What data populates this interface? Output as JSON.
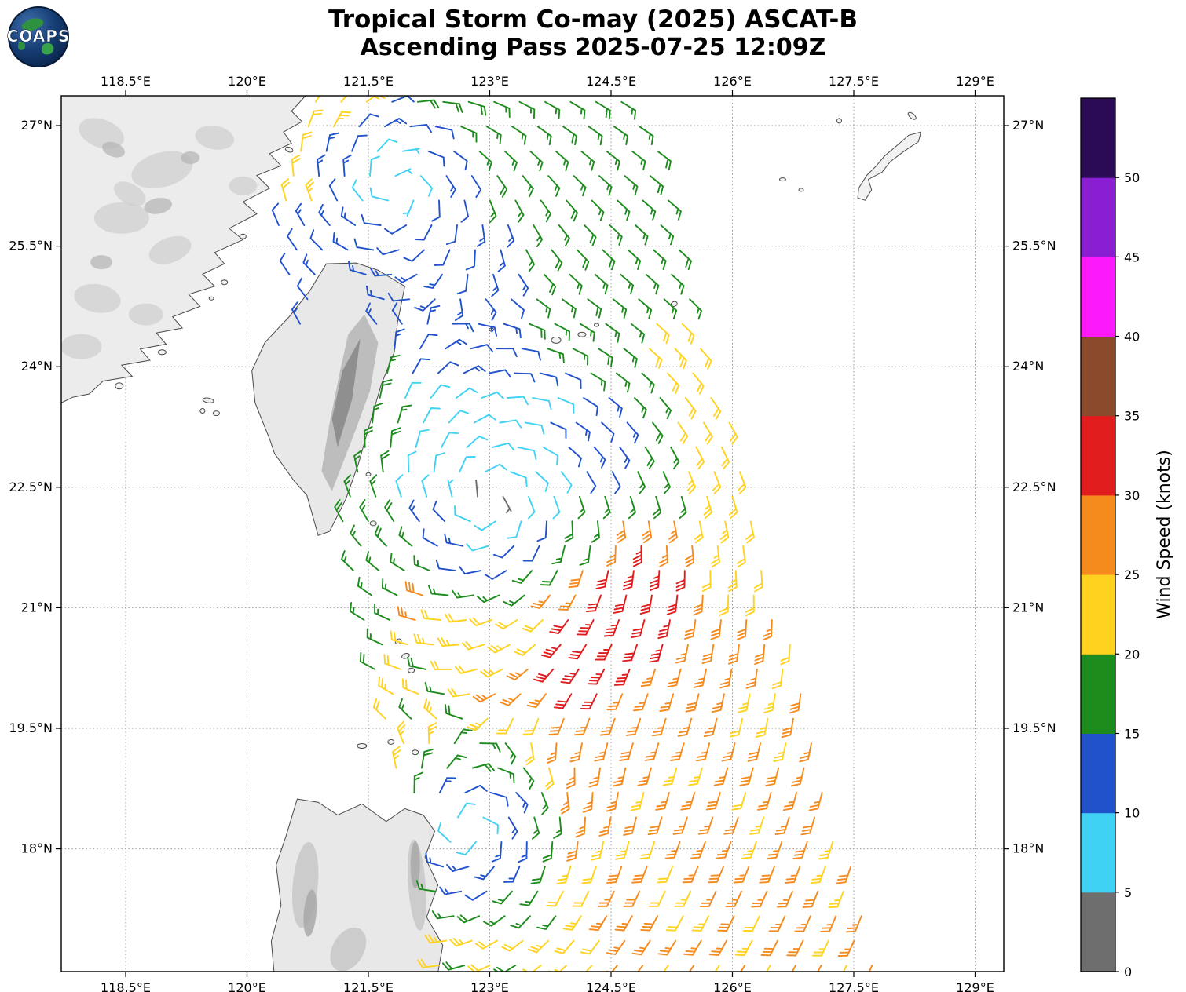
{
  "header": {
    "title_line1": "Tropical Storm Co-may (2025) ASCAT-B",
    "title_line2": "Ascending Pass 2025-07-25 12:09Z",
    "logo_text": "COAPS"
  },
  "axes": {
    "lon_ticks": [
      {
        "deg": 118.5,
        "label": "118.5°E"
      },
      {
        "deg": 120.0,
        "label": "120°E"
      },
      {
        "deg": 121.5,
        "label": "121.5°E"
      },
      {
        "deg": 123.0,
        "label": "123°E"
      },
      {
        "deg": 124.5,
        "label": "124.5°E"
      },
      {
        "deg": 126.0,
        "label": "126°E"
      },
      {
        "deg": 127.5,
        "label": "127.5°E"
      },
      {
        "deg": 129.0,
        "label": "129°E"
      }
    ],
    "lat_ticks": [
      {
        "deg": 27.0,
        "label": "27°N"
      },
      {
        "deg": 25.5,
        "label": "25.5°N"
      },
      {
        "deg": 24.0,
        "label": "24°N"
      },
      {
        "deg": 22.5,
        "label": "22.5°N"
      },
      {
        "deg": 21.0,
        "label": "21°N"
      },
      {
        "deg": 19.5,
        "label": "19.5°N"
      },
      {
        "deg": 18.0,
        "label": "18°N"
      }
    ]
  },
  "colorbar": {
    "title": "Wind Speed (knots)",
    "tick_values": [
      0,
      5,
      10,
      15,
      20,
      25,
      30,
      35,
      40,
      45,
      50
    ],
    "segment_colors": [
      "#6e6e6e",
      "#40d2f5",
      "#2152cc",
      "#1d8c1d",
      "#ffd21f",
      "#f58a1d",
      "#e11c1c",
      "#8a4a2b",
      "#fb1afb",
      "#8a1ed2",
      "#2b0a56"
    ]
  },
  "chart_data": {
    "type": "wind_barb_map",
    "title": "Tropical Storm Co-may (2025) ASCAT-B",
    "subtitle": "Ascending Pass 2025-07-25 12:09Z",
    "units": "knots",
    "lon_extent_deg_e": [
      117.7,
      129.35
    ],
    "lat_extent_deg_n": [
      16.47,
      27.37
    ],
    "lon_tick_values_deg_e": [
      118.5,
      120.0,
      121.5,
      123.0,
      124.5,
      126.0,
      127.5,
      129.0
    ],
    "lat_tick_values_deg_n": [
      27.0,
      25.5,
      24.0,
      22.5,
      21.0,
      19.5,
      18.0
    ],
    "speed_bin_edges_knots": [
      0,
      5,
      10,
      15,
      20,
      25,
      30,
      35,
      40,
      45,
      50,
      55
    ],
    "observed_speed_range_knots": [
      5,
      35
    ],
    "circulation_centers": [
      {
        "lon_e": 123.0,
        "lat_n": 22.35,
        "strength": 1.0
      },
      {
        "lon_e": 121.85,
        "lat_n": 26.25,
        "strength": 0.55
      },
      {
        "lon_e": 122.75,
        "lat_n": 18.2,
        "strength": 0.25
      }
    ],
    "max_wind_arc": {
      "bin_knots": [
        30,
        35
      ],
      "lon_e": [
        123.9,
        125.3
      ],
      "lat_n": [
        20.3,
        21.3
      ]
    },
    "swath": {
      "left_edge_lon_at_top_e": 120.05,
      "right_edge_lon_at_top_e": 124.9,
      "top_lat_n": 27.35,
      "bottom_lat_n": 16.5,
      "left_edge_slope_deglon_per_deglat": -0.215,
      "right_edge_slope_deglon_per_deglat": -0.27,
      "barb_spacing_deg": 0.315
    }
  }
}
